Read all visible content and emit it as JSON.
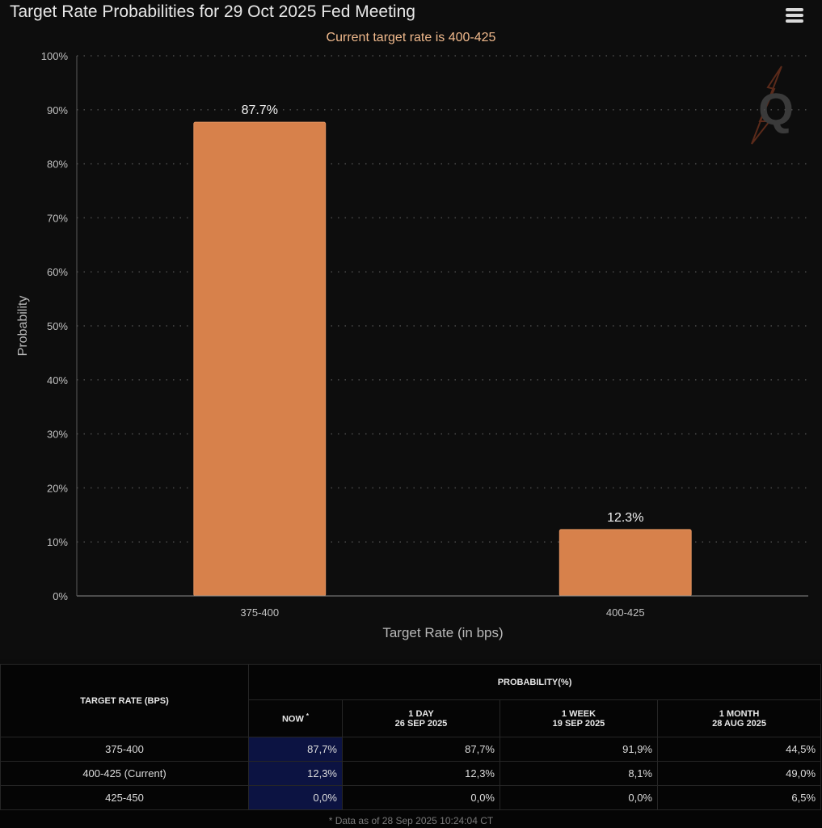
{
  "header": {
    "title": "Target Rate Probabilities for 29 Oct 2025 Fed Meeting",
    "subtitle": "Current target rate is 400-425"
  },
  "colors": {
    "bar": "#d7814b",
    "bar_stroke": "#e09260",
    "background": "#0d0d0d",
    "table_now_highlight": "#0c1342",
    "subtitle": "#f0b98c",
    "gridline": "#4a4a4a",
    "axis_text": "#c0c0c0"
  },
  "icons": {
    "menu": "hamburger-menu-icon",
    "watermark": "Q"
  },
  "chart_data": {
    "type": "bar",
    "categories": [
      "375-400",
      "400-425"
    ],
    "values": [
      87.7,
      12.3
    ],
    "data_labels": [
      "87.7%",
      "12.3%"
    ],
    "ylabel": "Probability",
    "xlabel": "Target Rate (in bps)",
    "ylim": [
      0,
      100
    ],
    "yticks": [
      "0%",
      "10%",
      "20%",
      "30%",
      "40%",
      "50%",
      "60%",
      "70%",
      "80%",
      "90%",
      "100%"
    ],
    "grid": true,
    "legend": "none"
  },
  "table": {
    "target_rate_header": "TARGET RATE (BPS)",
    "probability_header": "PROBABILITY(%)",
    "columns": [
      {
        "line1": "NOW",
        "line2": "",
        "note": "*"
      },
      {
        "line1": "1 DAY",
        "line2": "26 SEP 2025",
        "note": ""
      },
      {
        "line1": "1 WEEK",
        "line2": "19 SEP 2025",
        "note": ""
      },
      {
        "line1": "1 MONTH",
        "line2": "28 AUG 2025",
        "note": ""
      }
    ],
    "rows": [
      {
        "rate": "375-400",
        "values": [
          "87,7%",
          "87,7%",
          "91,9%",
          "44,5%"
        ]
      },
      {
        "rate": "400-425 (Current)",
        "values": [
          "12,3%",
          "12,3%",
          "8,1%",
          "49,0%"
        ]
      },
      {
        "rate": "425-450",
        "values": [
          "0,0%",
          "0,0%",
          "0,0%",
          "6,5%"
        ]
      }
    ],
    "footnote": "* Data as of 28 Sep 2025 10:24:04 CT"
  }
}
